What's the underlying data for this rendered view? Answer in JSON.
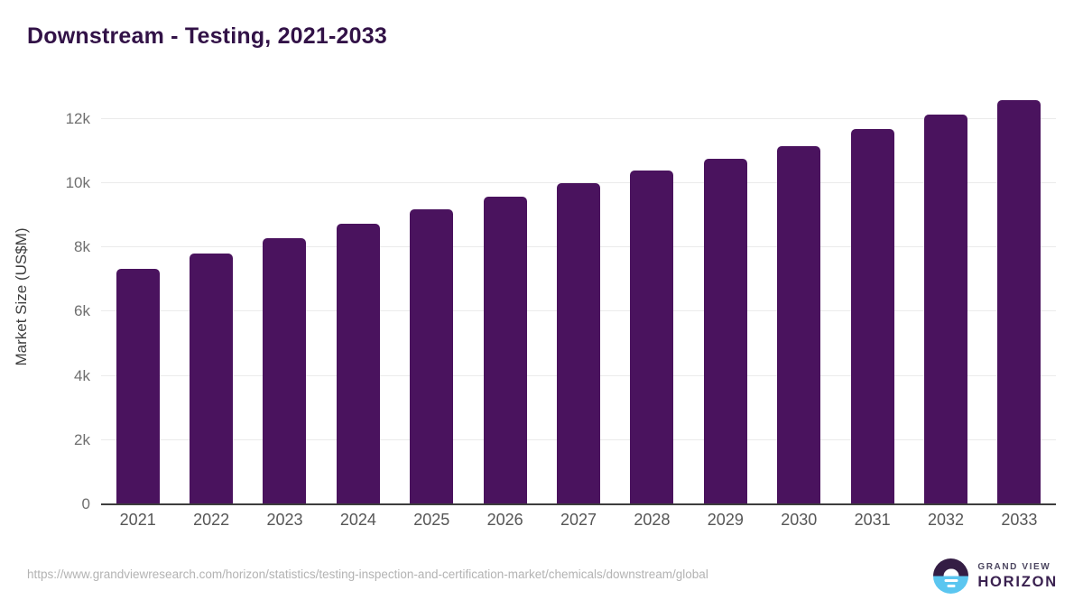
{
  "title": "Downstream - Testing, 2021-2033",
  "chart_data": {
    "type": "bar",
    "title": "Downstream - Testing, 2021-2033",
    "categories": [
      "2021",
      "2022",
      "2023",
      "2024",
      "2025",
      "2026",
      "2027",
      "2028",
      "2029",
      "2030",
      "2031",
      "2032",
      "2033"
    ],
    "values": [
      7320,
      7810,
      8280,
      8730,
      9180,
      9580,
      10000,
      10390,
      10770,
      11140,
      11690,
      12130,
      12580
    ],
    "xlabel": "",
    "ylabel": "Market Size (US$M)",
    "ylim": [
      0,
      12920
    ],
    "yticks": [
      0,
      2000,
      4000,
      6000,
      8000,
      10000,
      12000
    ],
    "ytick_labels": [
      "0",
      "2k",
      "4k",
      "6k",
      "8k",
      "10k",
      "12k"
    ],
    "grid": true,
    "legend": false,
    "bar_color": "#4a135e"
  },
  "footer": {
    "source_url": "https://www.grandviewresearch.com/horizon/statistics/testing-inspection-and-certification-market/chemicals/downstream/global",
    "logo": {
      "line1": "GRAND VIEW",
      "line2": "HORIZON"
    }
  }
}
